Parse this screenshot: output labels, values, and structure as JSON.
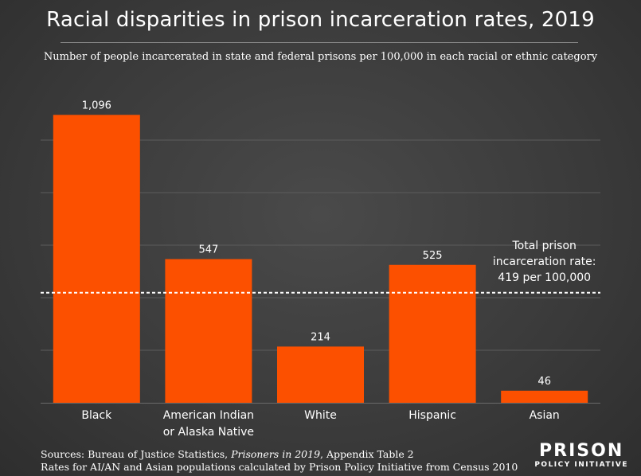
{
  "header": {
    "title": "Racial disparities in prison incarceration rates, 2019",
    "subtitle": "Number of people incarcerated in state and federal prisons per 100,000 in each racial or ethnic category"
  },
  "chart_data": {
    "type": "bar",
    "categories": [
      [
        "Black"
      ],
      [
        "American Indian",
        "or Alaska Native"
      ],
      [
        "White"
      ],
      [
        "Hispanic"
      ],
      [
        "Asian"
      ]
    ],
    "values": [
      1096,
      547,
      214,
      525,
      46
    ],
    "value_labels": [
      "1,096",
      "547",
      "214",
      "525",
      "46"
    ],
    "ylim": [
      0,
      1200
    ],
    "grid": true,
    "bar_color": "#fc5000",
    "reference_line": {
      "value": 419,
      "label_lines": [
        "Total prison",
        "incarceration rate:",
        "419 per 100,000"
      ]
    }
  },
  "footer": {
    "sources_line1_pre": "Sources: Bureau of Justice Statistics, ",
    "sources_line1_italic": "Prisoners in 2019",
    "sources_line1_post": ", Appendix Table 2",
    "sources_line2": "Rates for AI/AN and Asian populations calculated by Prison Policy Initiative from Census 2010"
  },
  "logo": {
    "line1": "PRISON",
    "line2": "POLICY INITIATIVE"
  }
}
